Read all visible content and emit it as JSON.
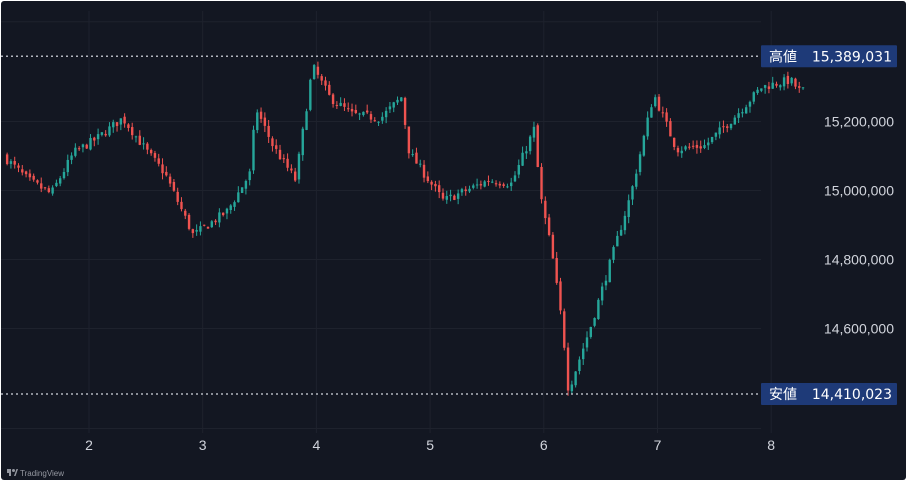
{
  "chart_data": {
    "type": "candlestick",
    "x_tick_labels": [
      "2",
      "3",
      "4",
      "5",
      "6",
      "7",
      "8"
    ],
    "y_tick_labels": [
      "15,200,000",
      "15,000,000",
      "14,800,000",
      "14,600,000"
    ],
    "y_ticks": [
      15200000,
      15000000,
      14800000,
      14600000
    ],
    "ylim": [
      14340000,
      15455000
    ],
    "grid": true,
    "high_marker": {
      "label": "高値",
      "value_text": "15,389,031",
      "value": 15389031
    },
    "low_marker": {
      "label": "安値",
      "value_text": "14,410,023",
      "value": 14410023
    },
    "anchors": [
      [
        1.25,
        15110000
      ],
      [
        1.5,
        15030000
      ],
      [
        1.7,
        14990000
      ],
      [
        1.9,
        15110000
      ],
      [
        2.1,
        15150000
      ],
      [
        2.33,
        15210000
      ],
      [
        2.55,
        15110000
      ],
      [
        2.7,
        15050000
      ],
      [
        2.95,
        14870000
      ],
      [
        3.25,
        14940000
      ],
      [
        3.45,
        15050000
      ],
      [
        3.5,
        15240000
      ],
      [
        3.65,
        15130000
      ],
      [
        3.85,
        15030000
      ],
      [
        4.0,
        15360000
      ],
      [
        4.15,
        15270000
      ],
      [
        4.35,
        15220000
      ],
      [
        4.6,
        15210000
      ],
      [
        4.78,
        15270000
      ],
      [
        4.85,
        15110000
      ],
      [
        5.15,
        14970000
      ],
      [
        5.35,
        15000000
      ],
      [
        5.55,
        15030000
      ],
      [
        5.75,
        15020000
      ],
      [
        5.95,
        15180000
      ],
      [
        6.0,
        14990000
      ],
      [
        6.1,
        14830000
      ],
      [
        6.2,
        14600000
      ],
      [
        6.25,
        14420000
      ],
      [
        6.45,
        14610000
      ],
      [
        6.8,
        14990000
      ],
      [
        7.0,
        15280000
      ],
      [
        7.2,
        15120000
      ],
      [
        7.45,
        15130000
      ],
      [
        7.7,
        15210000
      ],
      [
        7.95,
        15300000
      ],
      [
        8.2,
        15320000
      ],
      [
        8.28,
        15290000
      ]
    ],
    "colors": {
      "up": "#26a69a",
      "down": "#ef5350",
      "background": "#131722",
      "text": "#d1d4dc",
      "tag_bg": "#1e3a78"
    }
  },
  "branding": {
    "logo_text": "TradingView"
  }
}
